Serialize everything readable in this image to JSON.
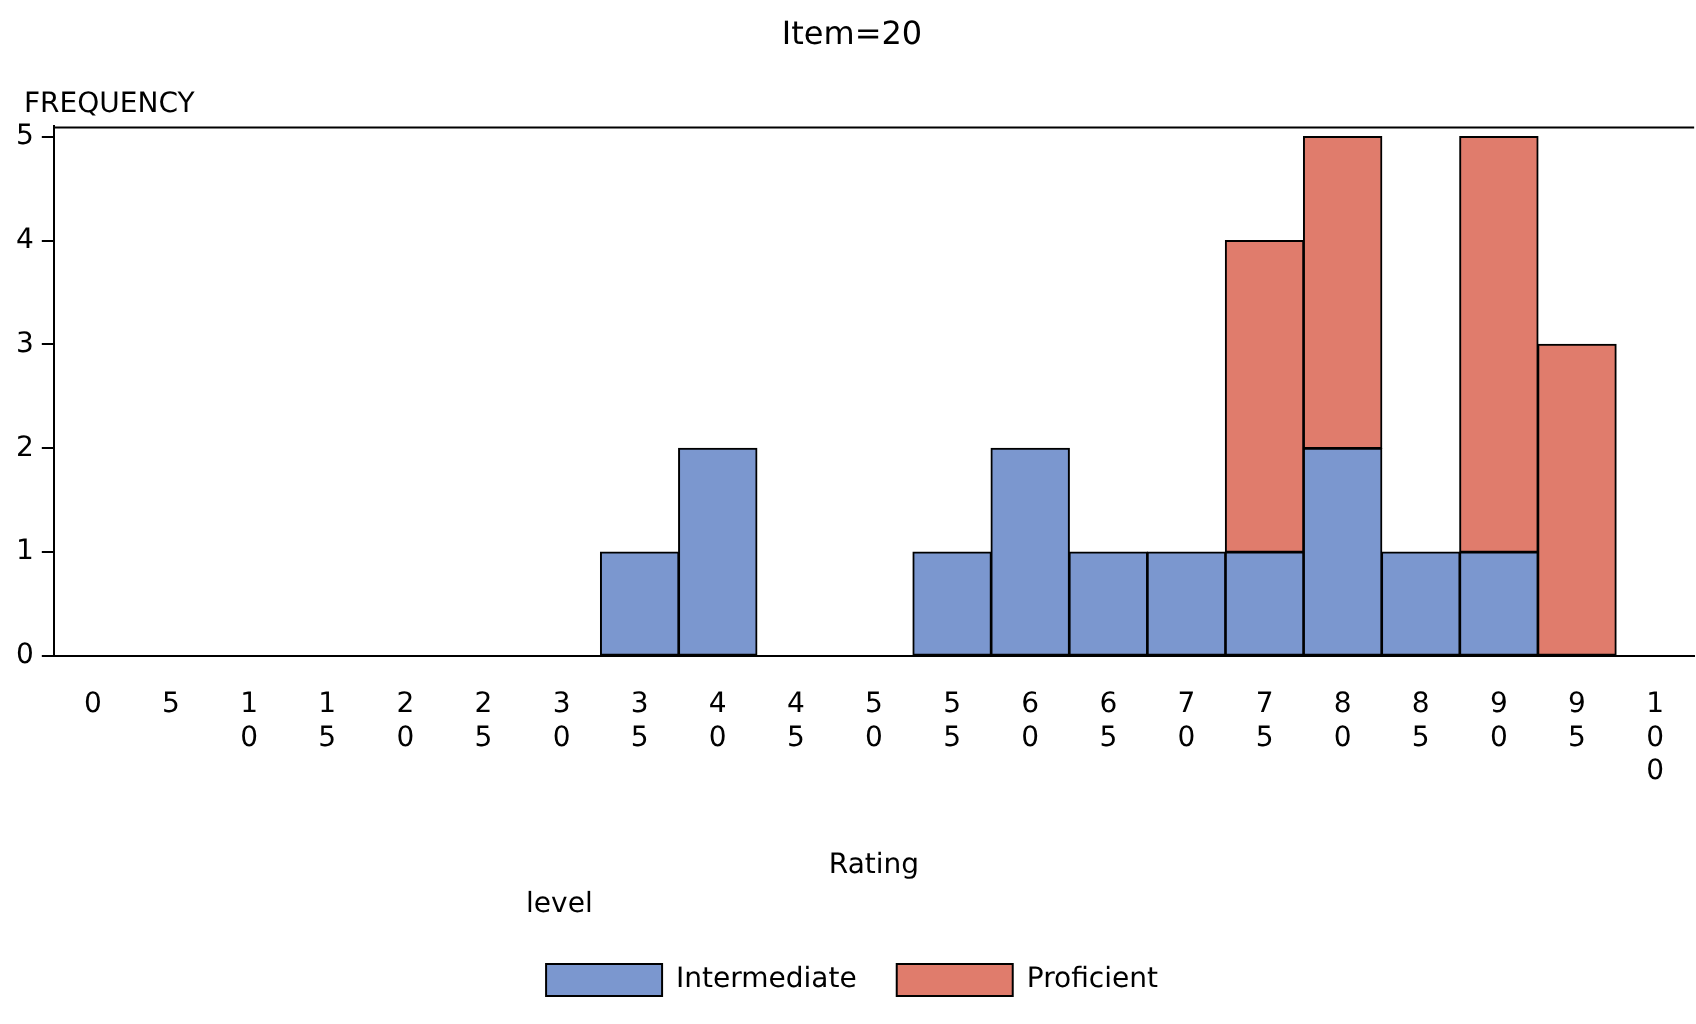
{
  "chart_data": {
    "type": "bar",
    "title": "Item=20",
    "xlabel": "Rating",
    "ylabel": "FREQUENCY",
    "legend_title": "level",
    "legend": "bottom",
    "stacked": true,
    "grid": false,
    "categories": [
      "0",
      "5",
      "10",
      "15",
      "20",
      "25",
      "30",
      "35",
      "40",
      "45",
      "50",
      "55",
      "60",
      "65",
      "70",
      "75",
      "80",
      "85",
      "90",
      "95",
      "100"
    ],
    "series": [
      {
        "name": "Intermediate",
        "color": "#7b97cf",
        "values": [
          null,
          null,
          null,
          null,
          null,
          null,
          null,
          1,
          2,
          null,
          null,
          1,
          2,
          1,
          1,
          1,
          2,
          1,
          1,
          null,
          null
        ]
      },
      {
        "name": "Proficient",
        "color": "#e07c6c",
        "values": [
          null,
          null,
          null,
          null,
          null,
          null,
          null,
          null,
          null,
          null,
          null,
          null,
          null,
          null,
          null,
          3,
          3,
          null,
          4,
          3,
          null
        ]
      }
    ],
    "ylim": [
      0,
      5.1
    ],
    "yticks": [
      0,
      1,
      2,
      3,
      4,
      5
    ]
  }
}
